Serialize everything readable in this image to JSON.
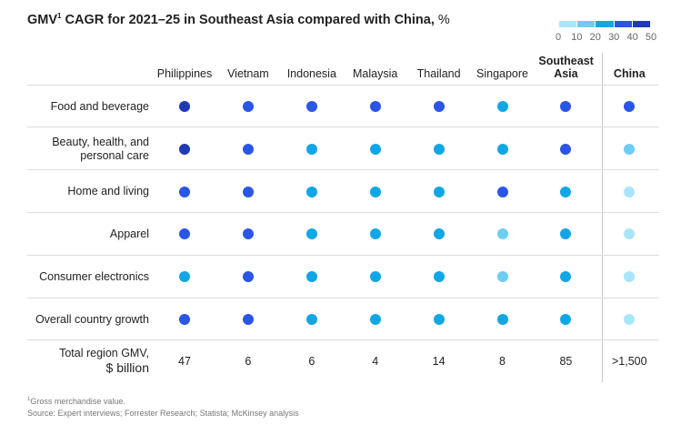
{
  "chart_data": {
    "type": "dot-matrix",
    "title": {
      "main": "GMV",
      "sup": "1",
      "rest": " CAGR for 2021–25 in Southeast Asia compared with China,",
      "unit": " %"
    },
    "legend": {
      "ticks": [
        0,
        10,
        20,
        30,
        40,
        50
      ],
      "colors": [
        "#a9e5f9",
        "#6dcdf3",
        "#11a6e6",
        "#2a55e6",
        "#2039b6"
      ]
    },
    "columns": [
      "Philippines",
      "Vietnam",
      "Indonesia",
      "Malaysia",
      "Thailand",
      "Singapore",
      "Southeast Asia",
      "China"
    ],
    "rows": [
      {
        "name": "Food and beverage",
        "values": [
          45,
          35,
          35,
          35,
          35,
          25,
          35,
          35
        ]
      },
      {
        "name": "Beauty, health, and personal care",
        "values": [
          45,
          35,
          25,
          25,
          25,
          25,
          35,
          15
        ]
      },
      {
        "name": "Home and living",
        "values": [
          35,
          35,
          25,
          25,
          25,
          35,
          25,
          5
        ]
      },
      {
        "name": "Apparel",
        "values": [
          35,
          35,
          25,
          25,
          25,
          15,
          25,
          5
        ]
      },
      {
        "name": "Consumer electronics",
        "values": [
          25,
          35,
          25,
          25,
          25,
          15,
          25,
          5
        ]
      },
      {
        "name": "Overall country growth",
        "values": [
          35,
          35,
          25,
          25,
          25,
          25,
          25,
          5
        ]
      }
    ],
    "gmv": {
      "label": "Total region GMV,",
      "unit": "$ billion",
      "values": [
        47,
        6,
        6,
        4,
        14,
        8,
        85,
        1500
      ],
      "value_labels": [
        "47",
        "6",
        "6",
        "4",
        "14",
        "8",
        "85",
        ">1,500"
      ]
    },
    "footnotes": {
      "sup": "1",
      "note": "Gross merchandise value.",
      "source": "Source: Expert interviews; Forrester Research; Statista; McKinsey analysis"
    }
  }
}
